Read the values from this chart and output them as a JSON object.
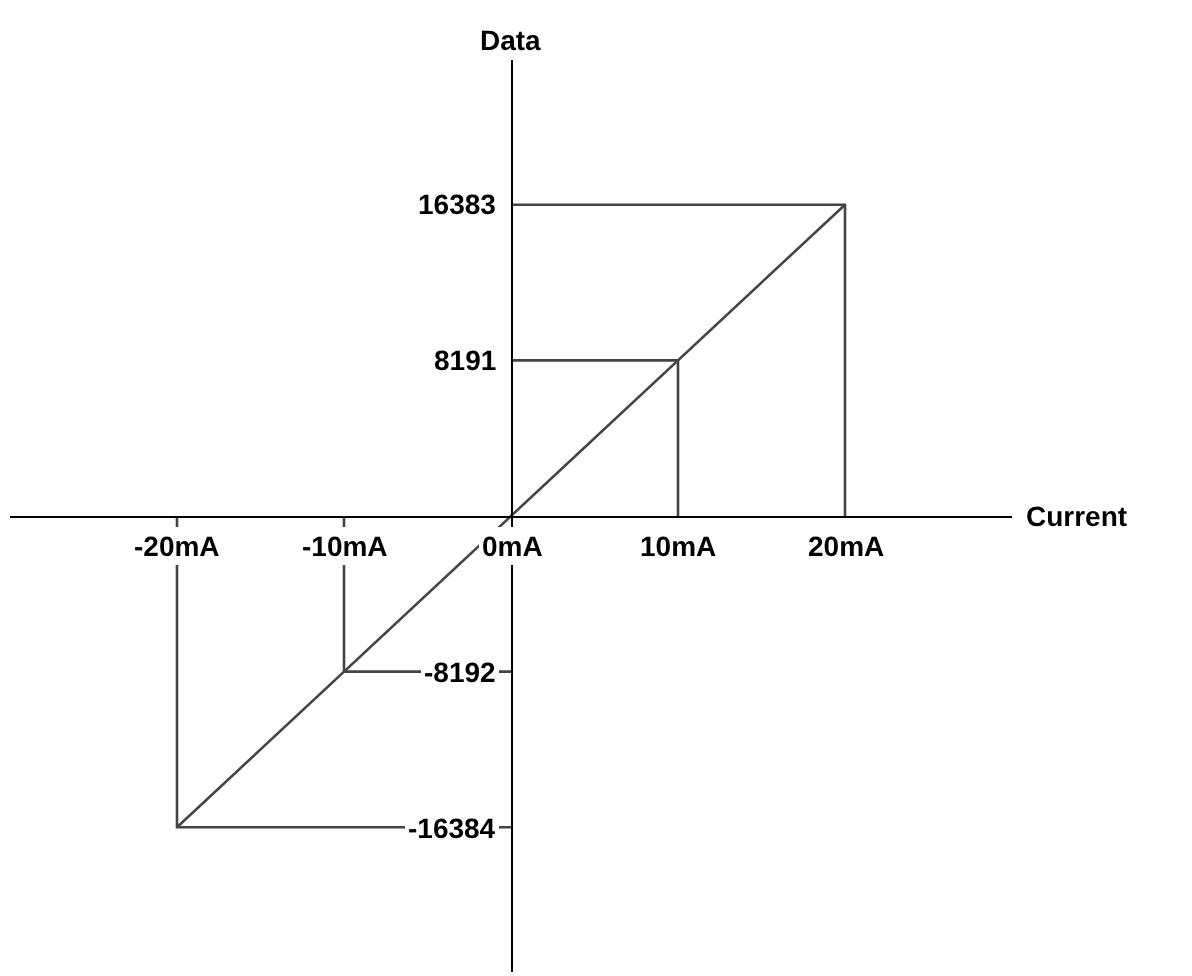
{
  "chart_data": {
    "type": "line",
    "xlabel": "Current",
    "ylabel": "Data",
    "xlim": [
      -30,
      30
    ],
    "ylim": [
      -24000,
      24000
    ],
    "xticks": [
      {
        "value": -20,
        "label": "-20mA"
      },
      {
        "value": -10,
        "label": "-10mA"
      },
      {
        "value": 0,
        "label": "0mA"
      },
      {
        "value": 10,
        "label": "10mA"
      },
      {
        "value": 20,
        "label": "20mA"
      }
    ],
    "yticks": [
      16383,
      8191,
      -8192,
      -16384
    ],
    "marker": "none",
    "line_style": "solid",
    "series": [
      {
        "color": "#444444",
        "x": [
          -20,
          20
        ],
        "values": [
          -16384,
          16383
        ]
      },
      {
        "color": "#444444",
        "x": [
          0,
          20,
          20
        ],
        "values": [
          16383,
          16383,
          0
        ]
      },
      {
        "color": "#444444",
        "x": [
          0,
          10,
          10
        ],
        "values": [
          8191,
          8191,
          0
        ]
      },
      {
        "color": "#444444",
        "x": [
          0,
          -10,
          -10
        ],
        "values": [
          -8192,
          -8192,
          0
        ]
      },
      {
        "color": "#444444",
        "x": [
          0,
          -20,
          -20
        ],
        "values": [
          -16384,
          -16384,
          0
        ]
      }
    ]
  }
}
